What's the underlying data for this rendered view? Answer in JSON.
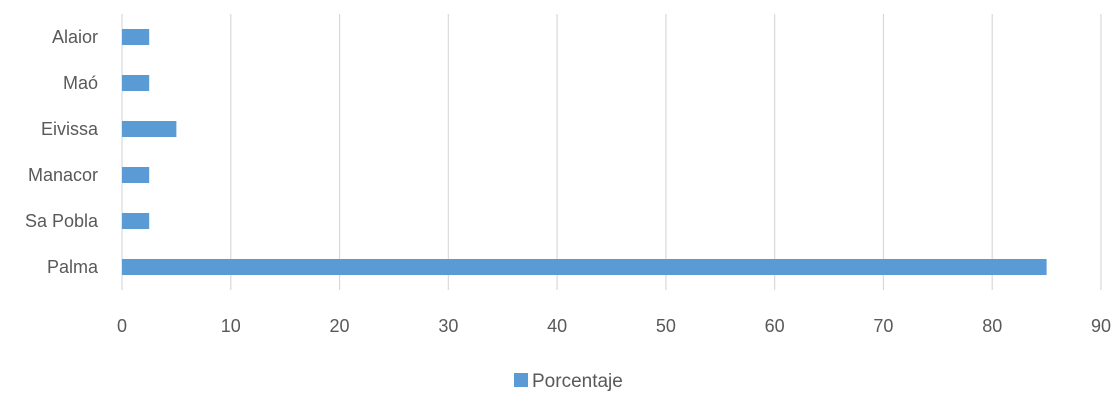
{
  "chart_data": {
    "type": "bar",
    "orientation": "horizontal",
    "categories": [
      "Alaior",
      "Maó",
      "Eivissa",
      "Manacor",
      "Sa Pobla",
      "Palma"
    ],
    "series": [
      {
        "name": "Porcentaje",
        "values": [
          2.5,
          2.5,
          5,
          2.5,
          2.5,
          85
        ],
        "color": "#5B9BD5"
      }
    ],
    "xlim": [
      0,
      90
    ],
    "x_ticks": [
      "0",
      "10",
      "20",
      "30",
      "40",
      "50",
      "60",
      "70",
      "80",
      "90"
    ],
    "grid": "vertical",
    "legend": "bottom",
    "gridline_color": "#d9d9d9",
    "text_color": "#595959"
  }
}
